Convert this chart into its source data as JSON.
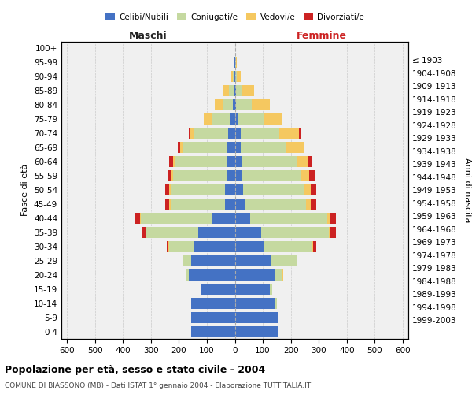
{
  "age_groups": [
    "0-4",
    "5-9",
    "10-14",
    "15-19",
    "20-24",
    "25-29",
    "30-34",
    "35-39",
    "40-44",
    "45-49",
    "50-54",
    "55-59",
    "60-64",
    "65-69",
    "70-74",
    "75-79",
    "80-84",
    "85-89",
    "90-94",
    "95-99",
    "100+"
  ],
  "birth_years": [
    "1999-2003",
    "1994-1998",
    "1989-1993",
    "1984-1988",
    "1979-1983",
    "1974-1978",
    "1969-1973",
    "1964-1968",
    "1959-1963",
    "1954-1958",
    "1949-1953",
    "1944-1948",
    "1939-1943",
    "1934-1938",
    "1929-1933",
    "1924-1928",
    "1919-1923",
    "1914-1918",
    "1909-1913",
    "1904-1908",
    "≤ 1903"
  ],
  "maschi": {
    "celibi": [
      155,
      155,
      155,
      120,
      165,
      155,
      145,
      130,
      80,
      35,
      35,
      30,
      30,
      30,
      25,
      15,
      8,
      5,
      2,
      1,
      0
    ],
    "coniugati": [
      0,
      0,
      2,
      2,
      10,
      30,
      90,
      185,
      255,
      195,
      195,
      190,
      185,
      155,
      120,
      65,
      35,
      15,
      5,
      2,
      0
    ],
    "vedovi": [
      0,
      0,
      0,
      0,
      0,
      0,
      2,
      2,
      5,
      5,
      5,
      5,
      5,
      10,
      15,
      30,
      30,
      20,
      5,
      2,
      0
    ],
    "divorziati": [
      0,
      0,
      0,
      0,
      0,
      0,
      5,
      15,
      15,
      15,
      15,
      15,
      15,
      10,
      5,
      0,
      0,
      0,
      0,
      0,
      0
    ]
  },
  "femmine": {
    "nubili": [
      155,
      155,
      145,
      125,
      145,
      130,
      105,
      95,
      55,
      35,
      30,
      25,
      25,
      20,
      20,
      10,
      5,
      5,
      2,
      1,
      0
    ],
    "coniugate": [
      0,
      0,
      5,
      8,
      25,
      90,
      170,
      240,
      275,
      220,
      220,
      210,
      195,
      165,
      140,
      95,
      55,
      20,
      5,
      2,
      0
    ],
    "vedove": [
      0,
      0,
      0,
      0,
      2,
      2,
      5,
      5,
      10,
      15,
      20,
      30,
      40,
      60,
      70,
      65,
      65,
      45,
      15,
      3,
      0
    ],
    "divorziate": [
      0,
      0,
      0,
      0,
      2,
      2,
      10,
      20,
      20,
      20,
      20,
      20,
      15,
      5,
      5,
      0,
      0,
      0,
      0,
      0,
      0
    ]
  },
  "colors": {
    "celibi": "#4472c4",
    "coniugati": "#c5d9a0",
    "vedovi": "#f5c860",
    "divorziati": "#cc2222"
  },
  "xlim": 620,
  "xticks": [
    0,
    100,
    200,
    300,
    400,
    500,
    600
  ],
  "title": "Popolazione per età, sesso e stato civile - 2004",
  "subtitle": "COMUNE DI BIASSONO (MB) - Dati ISTAT 1° gennaio 2004 - Elaborazione TUTTITALIA.IT",
  "ylabel_left": "Fasce di età",
  "ylabel_right": "Anni di nascita",
  "xlabel_maschi": "Maschi",
  "xlabel_femmine": "Femmine",
  "bg_color": "#ffffff",
  "plot_bg": "#f0f0f0",
  "grid_color": "#cccccc",
  "legend_labels": [
    "Celibi/Nubili",
    "Coniugati/e",
    "Vedovi/e",
    "Divorziati/e"
  ]
}
